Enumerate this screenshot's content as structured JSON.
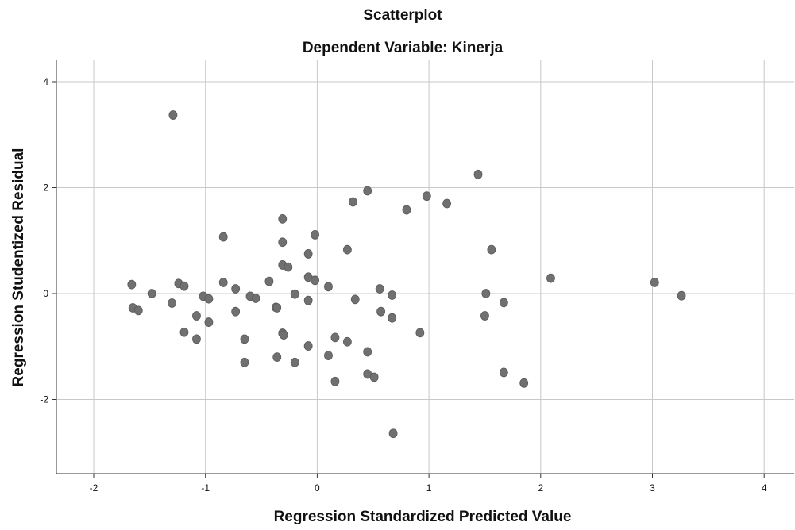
{
  "chart_data": {
    "type": "scatter",
    "title": "Scatterplot",
    "subtitle": "Dependent Variable: Kinerja",
    "xlabel": "Regression Standardized Predicted Value",
    "ylabel": "Regression Studentized Residual",
    "xlim": [
      -2.35,
      4.3
    ],
    "ylim": [
      -3.4,
      4.2
    ],
    "xticks": [
      -2,
      -1,
      0,
      1,
      2,
      3,
      4
    ],
    "yticks": [
      -2,
      0,
      2,
      4
    ],
    "xtick_labels": [
      "-2",
      "-1",
      "0",
      "1",
      "2",
      "3",
      "4"
    ],
    "ytick_labels": [
      "-2",
      "0",
      "2",
      "4"
    ],
    "grid": true,
    "point_color": "#707070",
    "points": [
      {
        "x": -1.66,
        "y": 0.17
      },
      {
        "x": -1.65,
        "y": -0.27
      },
      {
        "x": -1.6,
        "y": -0.32
      },
      {
        "x": -1.48,
        "y": 0.0
      },
      {
        "x": -1.3,
        "y": -0.18
      },
      {
        "x": -1.29,
        "y": 3.37
      },
      {
        "x": -1.24,
        "y": 0.19
      },
      {
        "x": -1.19,
        "y": 0.14
      },
      {
        "x": -1.19,
        "y": -0.73
      },
      {
        "x": -1.08,
        "y": -0.42
      },
      {
        "x": -1.08,
        "y": -0.86
      },
      {
        "x": -1.02,
        "y": -0.05
      },
      {
        "x": -0.97,
        "y": -0.1
      },
      {
        "x": -0.97,
        "y": -0.54
      },
      {
        "x": -0.84,
        "y": 1.07
      },
      {
        "x": -0.84,
        "y": 0.21
      },
      {
        "x": -0.73,
        "y": 0.09
      },
      {
        "x": -0.73,
        "y": -0.34
      },
      {
        "x": -0.65,
        "y": -0.86
      },
      {
        "x": -0.65,
        "y": -1.3
      },
      {
        "x": -0.6,
        "y": -0.05
      },
      {
        "x": -0.55,
        "y": -0.09
      },
      {
        "x": -0.43,
        "y": 0.23
      },
      {
        "x": -0.37,
        "y": -0.26
      },
      {
        "x": -0.36,
        "y": -0.27
      },
      {
        "x": -0.36,
        "y": -1.2
      },
      {
        "x": -0.31,
        "y": 1.41
      },
      {
        "x": -0.31,
        "y": 0.97
      },
      {
        "x": -0.31,
        "y": 0.54
      },
      {
        "x": -0.31,
        "y": -0.75
      },
      {
        "x": -0.3,
        "y": -0.78
      },
      {
        "x": -0.26,
        "y": 0.5
      },
      {
        "x": -0.2,
        "y": -0.01
      },
      {
        "x": -0.2,
        "y": -1.3
      },
      {
        "x": -0.08,
        "y": 0.75
      },
      {
        "x": -0.08,
        "y": 0.31
      },
      {
        "x": -0.08,
        "y": -0.13
      },
      {
        "x": -0.08,
        "y": -0.99
      },
      {
        "x": -0.02,
        "y": 1.11
      },
      {
        "x": -0.02,
        "y": 0.25
      },
      {
        "x": 0.1,
        "y": 0.13
      },
      {
        "x": 0.1,
        "y": -1.17
      },
      {
        "x": 0.16,
        "y": -0.83
      },
      {
        "x": 0.16,
        "y": -1.66
      },
      {
        "x": 0.27,
        "y": 0.83
      },
      {
        "x": 0.27,
        "y": -0.91
      },
      {
        "x": 0.32,
        "y": 1.73
      },
      {
        "x": 0.34,
        "y": -0.11
      },
      {
        "x": 0.45,
        "y": 1.94
      },
      {
        "x": 0.45,
        "y": -1.1
      },
      {
        "x": 0.45,
        "y": -1.52
      },
      {
        "x": 0.51,
        "y": -1.58
      },
      {
        "x": 0.56,
        "y": 0.09
      },
      {
        "x": 0.57,
        "y": -0.34
      },
      {
        "x": 0.67,
        "y": -0.03
      },
      {
        "x": 0.67,
        "y": -0.46
      },
      {
        "x": 0.68,
        "y": -2.64
      },
      {
        "x": 0.8,
        "y": 1.58
      },
      {
        "x": 0.92,
        "y": -0.74
      },
      {
        "x": 0.98,
        "y": 1.84
      },
      {
        "x": 1.16,
        "y": 1.7
      },
      {
        "x": 1.44,
        "y": 2.25
      },
      {
        "x": 1.5,
        "y": -0.42
      },
      {
        "x": 1.51,
        "y": 0.0
      },
      {
        "x": 1.56,
        "y": 0.83
      },
      {
        "x": 1.67,
        "y": -0.17
      },
      {
        "x": 1.67,
        "y": -1.49
      },
      {
        "x": 1.85,
        "y": -1.69
      },
      {
        "x": 2.09,
        "y": 0.29
      },
      {
        "x": 3.02,
        "y": 0.21
      },
      {
        "x": 3.26,
        "y": -0.04
      }
    ]
  }
}
